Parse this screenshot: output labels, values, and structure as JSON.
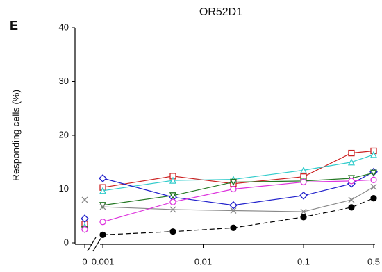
{
  "chart_data": {
    "type": "line",
    "panel": "E",
    "title": "OR52D1",
    "y_label": "Responding cells (%)",
    "x": [
      0.001,
      0.005,
      0.02,
      0.1,
      0.3,
      0.5
    ],
    "xlim": [
      0.001,
      0.5
    ],
    "log_x": true,
    "xticks": [
      0.001,
      0.01,
      0.1,
      0.5
    ],
    "zero_tick": 0,
    "ylim": [
      0,
      40
    ],
    "yticks": [
      0,
      10,
      20,
      30,
      40
    ],
    "series": [
      {
        "color": "#000000",
        "marker": "circle-filled",
        "dash": true,
        "zero_value": 3.0,
        "values": [
          1.5,
          2.1,
          2.8,
          4.8,
          6.6,
          8.3
        ]
      },
      {
        "color": "#cc2222",
        "marker": "square",
        "zero_value": 3.5,
        "values": [
          10.3,
          12.4,
          11.0,
          12.3,
          16.7,
          17.1
        ]
      },
      {
        "color": "#33cccc",
        "marker": "triangle",
        "zero_value": 3.0,
        "values": [
          9.7,
          11.6,
          11.8,
          13.5,
          15.0,
          16.4
        ]
      },
      {
        "color": "#2222cc",
        "marker": "diamond",
        "zero_value": 4.5,
        "values": [
          12.0,
          8.5,
          7.0,
          8.8,
          11.0,
          13.2
        ]
      },
      {
        "color": "#227722",
        "marker": "triangle-down",
        "zero_value": 2.5,
        "values": [
          7.0,
          8.8,
          11.3,
          11.5,
          12.0,
          13.0
        ]
      },
      {
        "color": "#888888",
        "marker": "cross",
        "zero_value": 8.0,
        "values": [
          6.7,
          6.2,
          6.0,
          5.8,
          8.0,
          10.4
        ]
      },
      {
        "color": "#dd33dd",
        "marker": "circle",
        "zero_value": 2.5,
        "values": [
          3.9,
          7.6,
          10.0,
          11.3,
          11.5,
          11.7
        ]
      }
    ]
  }
}
